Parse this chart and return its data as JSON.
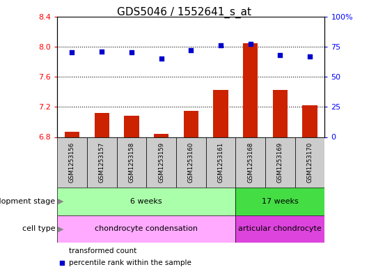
{
  "title": "GDS5046 / 1552641_s_at",
  "samples": [
    "GSM1253156",
    "GSM1253157",
    "GSM1253158",
    "GSM1253159",
    "GSM1253160",
    "GSM1253161",
    "GSM1253168",
    "GSM1253169",
    "GSM1253170"
  ],
  "transformed_count": [
    6.87,
    7.12,
    7.08,
    6.84,
    7.15,
    7.42,
    8.04,
    7.42,
    7.22
  ],
  "percentile_rank": [
    70,
    71,
    70,
    65,
    72,
    76,
    77,
    68,
    67
  ],
  "ylim_left": [
    6.8,
    8.4
  ],
  "ylim_right": [
    0,
    100
  ],
  "yticks_left": [
    6.8,
    7.2,
    7.6,
    8.0,
    8.4
  ],
  "yticks_right": [
    0,
    25,
    50,
    75,
    100
  ],
  "ytick_labels_left": [
    "6.8",
    "7.2",
    "7.6",
    "8.0",
    "8.4"
  ],
  "ytick_labels_right": [
    "0",
    "25",
    "50",
    "75",
    "100%"
  ],
  "bar_color": "#cc2200",
  "dot_color": "#0000cc",
  "sample_box_color": "#cccccc",
  "dev_stage_groups": [
    {
      "label": "6 weeks",
      "samples": [
        0,
        5
      ],
      "color": "#aaffaa"
    },
    {
      "label": "17 weeks",
      "samples": [
        6,
        8
      ],
      "color": "#44dd44"
    }
  ],
  "cell_type_groups": [
    {
      "label": "chondrocyte condensation",
      "samples": [
        0,
        5
      ],
      "color": "#ffaaff"
    },
    {
      "label": "articular chondrocyte",
      "samples": [
        6,
        8
      ],
      "color": "#dd44dd"
    }
  ],
  "legend_bar_label": "transformed count",
  "legend_dot_label": "percentile rank within the sample",
  "dev_stage_label": "development stage",
  "cell_type_label": "cell type",
  "title_fontsize": 11,
  "tick_fontsize": 8,
  "label_fontsize": 8,
  "grid_yticks": [
    7.2,
    7.6,
    8.0
  ]
}
